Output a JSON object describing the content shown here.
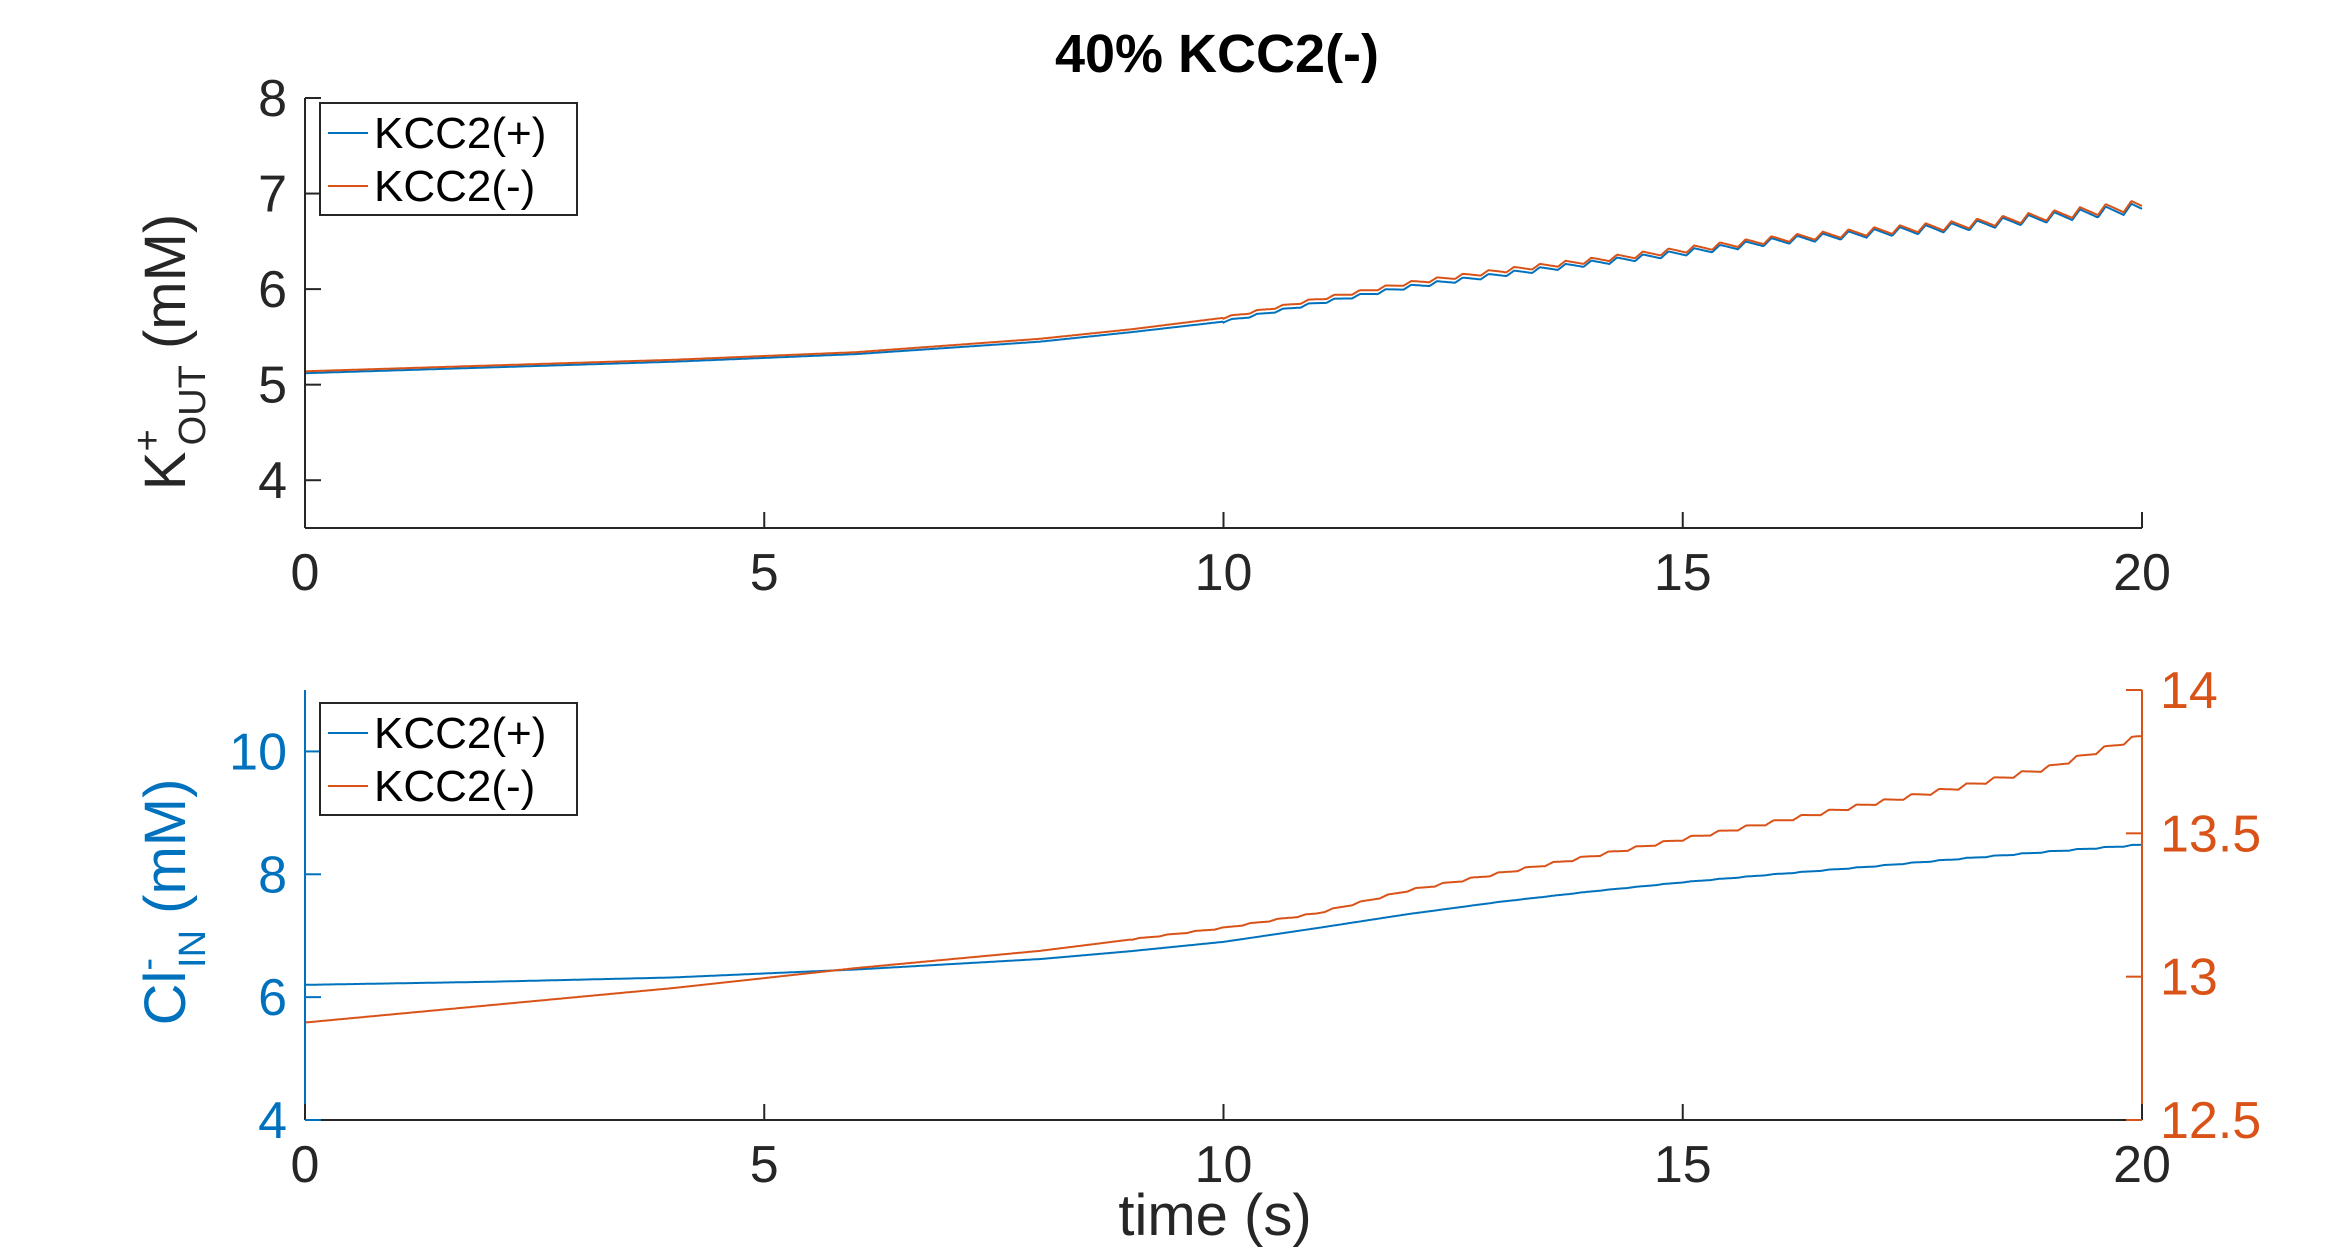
{
  "title": "40% KCC2(-)",
  "colors": {
    "kcc2_plus": "#0072BD",
    "kcc2_minus": "#D95319",
    "axis": "#262626"
  },
  "chart_data": [
    {
      "type": "line",
      "ylabel": {
        "main": "K",
        "sup": "+",
        "sub": "OUT",
        "unit": " (mM)"
      },
      "xlabel": "",
      "xlim": [
        0,
        20
      ],
      "ylim": [
        3.5,
        8
      ],
      "xticks": [
        0,
        5,
        10,
        15,
        20
      ],
      "yticks": [
        4,
        5,
        6,
        7,
        8
      ],
      "legend": {
        "placement": "top-left",
        "entries": [
          "KCC2(+)",
          "KCC2(-)"
        ]
      },
      "series": [
        {
          "name": "KCC2(+)",
          "color": "#0072BD",
          "x": [
            0,
            2,
            4,
            6,
            8,
            9,
            10,
            11,
            12,
            13,
            14,
            15,
            16,
            17,
            18,
            19,
            20
          ],
          "y": [
            5.12,
            5.18,
            5.24,
            5.32,
            5.45,
            5.55,
            5.66,
            5.85,
            6.02,
            6.15,
            6.27,
            6.38,
            6.5,
            6.58,
            6.65,
            6.75,
            6.85
          ],
          "oscillation": {
            "start": 10,
            "amplitude_start": 0.02,
            "amplitude_end": 0.11,
            "period": 0.28
          }
        },
        {
          "name": "KCC2(-)",
          "color": "#D95319",
          "x": [
            0,
            2,
            4,
            6,
            8,
            9,
            10,
            11,
            12,
            13,
            14,
            15,
            16,
            17,
            18,
            19,
            20
          ],
          "y": [
            5.14,
            5.2,
            5.26,
            5.34,
            5.48,
            5.58,
            5.7,
            5.89,
            6.06,
            6.19,
            6.3,
            6.41,
            6.52,
            6.6,
            6.67,
            6.77,
            6.88
          ],
          "oscillation": {
            "start": 10,
            "amplitude_start": 0.02,
            "amplitude_end": 0.11,
            "period": 0.28
          }
        }
      ]
    },
    {
      "type": "line",
      "ylabel": {
        "main": "Cl",
        "sup": "-",
        "sub": "IN",
        "unit": " (mM)"
      },
      "xlabel": "time (s)",
      "xlim": [
        0,
        20
      ],
      "ylim": [
        4,
        11
      ],
      "y2lim": [
        12.5,
        14
      ],
      "xticks": [
        0,
        5,
        10,
        15,
        20
      ],
      "yticks": [
        4,
        6,
        8,
        10
      ],
      "y2ticks": [
        12.5,
        13,
        13.5,
        14
      ],
      "legend": {
        "placement": "top-left",
        "entries": [
          "KCC2(+)",
          "KCC2(-)"
        ]
      },
      "series": [
        {
          "name": "KCC2(+)",
          "color": "#0072BD",
          "axis": "left",
          "x": [
            0,
            2,
            4,
            6,
            8,
            9,
            10,
            11,
            12,
            13,
            14,
            15,
            16,
            17,
            18,
            19,
            20
          ],
          "y": [
            6.2,
            6.25,
            6.32,
            6.45,
            6.62,
            6.75,
            6.9,
            7.12,
            7.35,
            7.55,
            7.72,
            7.87,
            8.0,
            8.12,
            8.25,
            8.37,
            8.48
          ],
          "oscillation": {
            "start": 12,
            "amplitude_start": 0.0,
            "amplitude_end": 0.02,
            "period": 0.3
          }
        },
        {
          "name": "KCC2(-)",
          "color": "#D95319",
          "axis": "right",
          "x": [
            0,
            2,
            4,
            6,
            8,
            9,
            10,
            11,
            12,
            13,
            14,
            15,
            16,
            17,
            18,
            19,
            20
          ],
          "y": [
            12.84,
            12.9,
            12.96,
            13.03,
            13.09,
            13.13,
            13.17,
            13.22,
            13.3,
            13.36,
            13.42,
            13.48,
            13.54,
            13.6,
            13.66,
            13.73,
            13.84
          ],
          "oscillation": {
            "start": 9,
            "amplitude_start": 0.003,
            "amplitude_end": 0.018,
            "period": 0.3
          }
        }
      ]
    }
  ]
}
